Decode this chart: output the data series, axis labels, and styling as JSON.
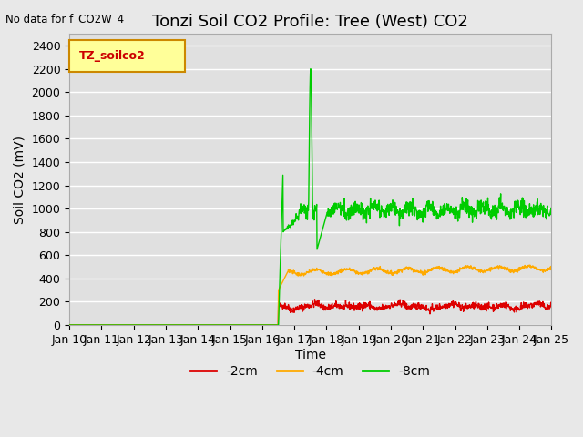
{
  "title": "Tonzi Soil CO2 Profile: Tree (West) CO2",
  "top_left_note": "No data for f_CO2W_4",
  "ylabel": "Soil CO2 (mV)",
  "xlabel": "Time",
  "ylim": [
    0,
    2500
  ],
  "yticks": [
    0,
    200,
    400,
    600,
    800,
    1000,
    1200,
    1400,
    1600,
    1800,
    2000,
    2200,
    2400
  ],
  "legend_label": "TZ_soilco2",
  "legend_box_color": "#ffff99",
  "legend_box_edge": "#cc8800",
  "legend_text_color": "#cc0000",
  "colors": {
    "cm2": "#dd0000",
    "cm4": "#ffaa00",
    "cm8": "#00cc00"
  },
  "series_labels": [
    "-2cm",
    "-4cm",
    "-8cm"
  ],
  "background_color": "#e8e8e8",
  "plot_bg_color": "#e0e0e0",
  "grid_color": "#ffffff",
  "title_fontsize": 13,
  "tick_fontsize": 9,
  "label_fontsize": 10
}
